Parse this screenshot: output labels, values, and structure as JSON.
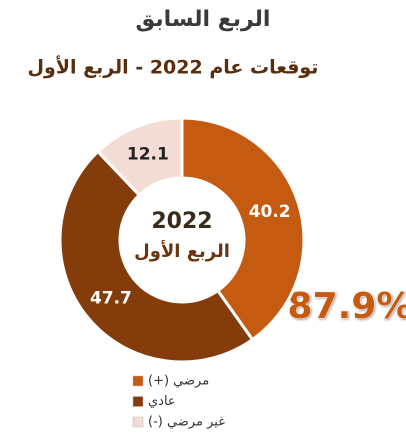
{
  "chart_data": {
    "type": "donut",
    "title": "الربع السابق",
    "subtitle": "توقعات عام 2022 - الربع الأول",
    "center_text": [
      "2022",
      "الربع الأول"
    ],
    "annotation": "87.9%",
    "categories": [
      "مرضي (+)",
      "عادي",
      "غير مرضي (-)"
    ],
    "values": [
      40.2,
      47.7,
      12.1
    ],
    "colors": [
      "#c55a11",
      "#843c0b",
      "#f2dcd3"
    ],
    "label_colors": [
      "#ffffff",
      "#ffffff",
      "#222222"
    ],
    "legend_text_colors": [
      "#333333",
      "#333333",
      "#e00000"
    ]
  }
}
